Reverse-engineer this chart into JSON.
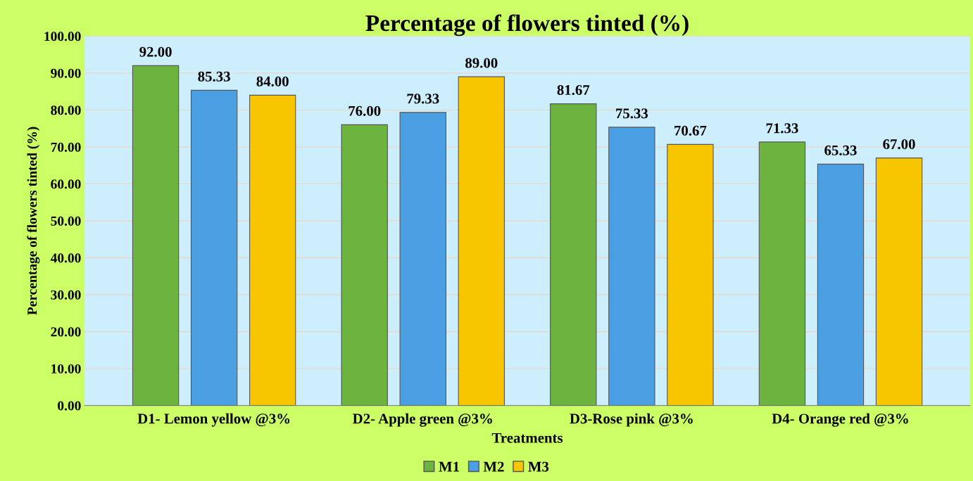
{
  "chart_data": {
    "type": "bar",
    "title": "Percentage of flowers tinted (%)",
    "xlabel": "Treatments",
    "ylabel": "Percentage of flowers tinted (%)",
    "categories": [
      "D1- Lemon yellow @3%",
      "D2- Apple green @3%",
      "D3-Rose pink @3%",
      "D4- Orange red @3%"
    ],
    "series": [
      {
        "name": "M1",
        "color": "#6cb33f",
        "values": [
          92.0,
          76.0,
          81.67,
          71.33
        ],
        "value_labels": [
          "92.00",
          "76.00",
          "81.67",
          "71.33"
        ]
      },
      {
        "name": "M2",
        "color": "#4a9fe3",
        "values": [
          85.33,
          79.33,
          75.33,
          65.33
        ],
        "value_labels": [
          "85.33",
          "79.33",
          "75.33",
          "65.33"
        ]
      },
      {
        "name": "M3",
        "color": "#f7c600",
        "values": [
          84.0,
          89.0,
          70.67,
          67.0
        ],
        "value_labels": [
          "84.00",
          "89.00",
          "70.67",
          "67.00"
        ]
      }
    ],
    "ylim": [
      0,
      100
    ],
    "yticks": [
      {
        "value": 0,
        "label": "0.00"
      },
      {
        "value": 10,
        "label": "10.00"
      },
      {
        "value": 20,
        "label": "20.00"
      },
      {
        "value": 30,
        "label": "30.00"
      },
      {
        "value": 40,
        "label": "40.00"
      },
      {
        "value": 50,
        "label": "50.00"
      },
      {
        "value": 60,
        "label": "60.00"
      },
      {
        "value": 70,
        "label": "70.00"
      },
      {
        "value": 80,
        "label": "80.00"
      },
      {
        "value": 90,
        "label": "90.00"
      },
      {
        "value": 100,
        "label": "100.00"
      }
    ],
    "grid": "y",
    "legend": "bottom"
  }
}
